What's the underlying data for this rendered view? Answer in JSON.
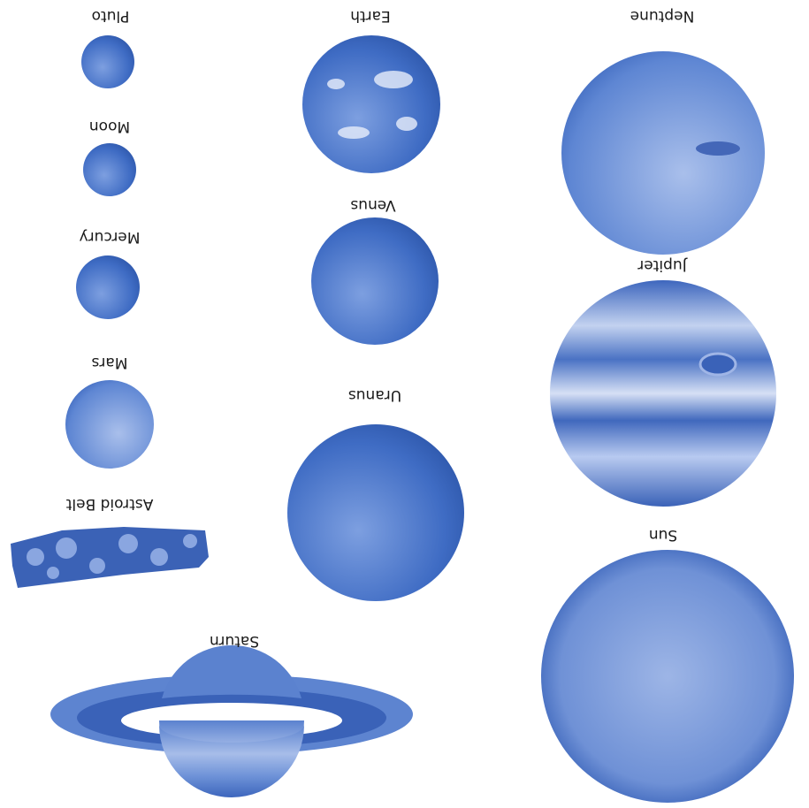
{
  "bodies": [
    {
      "label": "Pluto"
    },
    {
      "label": "Earth"
    },
    {
      "label": "Neptune"
    },
    {
      "label": "Moon"
    },
    {
      "label": "Venus"
    },
    {
      "label": "Mercury"
    },
    {
      "label": "Jupiter"
    },
    {
      "label": "Mars"
    },
    {
      "label": "Uranus"
    },
    {
      "label": "Astroid Belt"
    },
    {
      "label": "Sun"
    },
    {
      "label": "Saturn"
    }
  ]
}
